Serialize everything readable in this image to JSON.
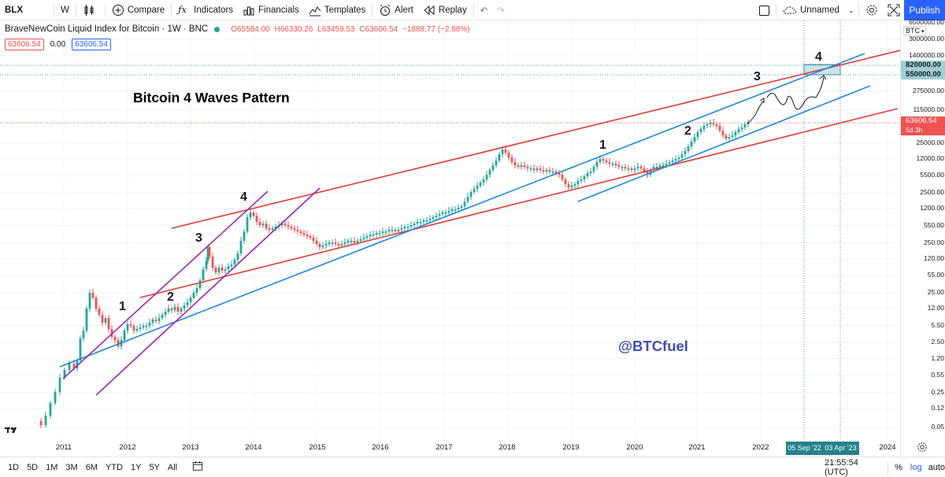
{
  "toolbar": {
    "symbol": "BLX",
    "interval": "W",
    "compare": "Compare",
    "indicators": "Indicators",
    "financials": "Financials",
    "templates": "Templates",
    "alert": "Alert",
    "replay": "Replay",
    "layout_name": "Unnamed",
    "publish": "Publish"
  },
  "legend": {
    "title": "BraveNewCoin Liquid Index for Bitcoin · 1W · BNC",
    "open": "O65584.00",
    "high": "H66330.26",
    "low": "L63459.53",
    "close": "C63606.54",
    "change": "−1888.77 (−2.88%)",
    "bid": "63606.54",
    "spread": "0.00",
    "ask": "63606.54"
  },
  "annotations": {
    "headline": "Bitcoin 4 Waves Pattern",
    "handle": "@BTCfuel",
    "waves_left": [
      "1",
      "2",
      "3",
      "4"
    ],
    "waves_right": [
      "1",
      "2",
      "3",
      "4"
    ]
  },
  "price_scale": {
    "currency": "BTC",
    "ticks": [
      "6500000.00",
      "3000000.00",
      "1400000.00",
      "275000.00",
      "115000.00",
      "25000.00",
      "12000.00",
      "5500.00",
      "2500.00",
      "1200.00",
      "550.00",
      "250.00",
      "120.00",
      "55.00",
      "25.00",
      "12.00",
      "5.50",
      "2.50",
      "1.20",
      "0.55",
      "0.25",
      "0.12",
      "0.05"
    ],
    "target_high": "820000.00",
    "target_low": "550000.00",
    "last_price": "63606.54",
    "countdown": "5d 3h"
  },
  "time_axis": {
    "labels": [
      "2011",
      "2012",
      "2013",
      "2014",
      "2015",
      "2016",
      "2017",
      "2018",
      "2019",
      "2020",
      "2021",
      "2022",
      "2024"
    ],
    "range_start": "05 Sep '22",
    "range_end": "03 Apr '23"
  },
  "bottom_bar": {
    "ranges": [
      "1D",
      "5D",
      "1M",
      "3M",
      "6M",
      "YTD",
      "1Y",
      "5Y",
      "All"
    ],
    "clock": "21:55:54 (UTC)",
    "percent": "%",
    "log": "log",
    "auto": "auto"
  },
  "colors": {
    "red_channel": "#e53935",
    "blue_channel": "#1e88e5",
    "purple_channel": "#9c27b0",
    "up": "#26a69a",
    "down": "#ef5350",
    "accent": "#2962ff",
    "handle": "#3f51b5"
  }
}
